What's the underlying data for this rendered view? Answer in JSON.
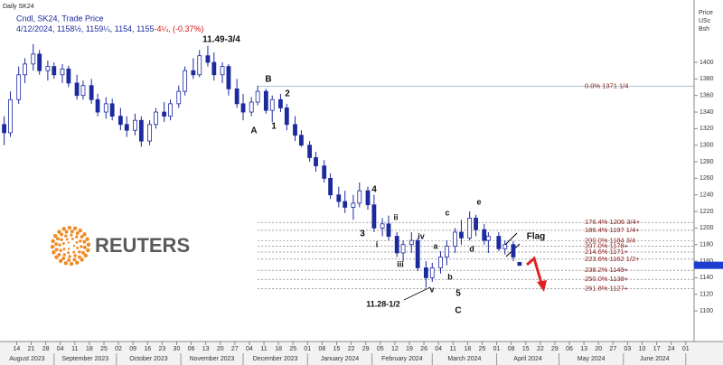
{
  "chart_data": {
    "type": "candlestick",
    "title": "Daily SK24",
    "subtitle": "Cndl, SK24, Trade Price",
    "ohlc_text": "4/12/2024, 1158½, 1159¼, 1154, 1155",
    "change_text": "-4¼, (-0.37%)",
    "y_label": [
      "Price",
      "USc",
      "Bsh"
    ],
    "watermark": "REUTERS",
    "color": "#1c2a9e",
    "x": [
      "2023-08-08",
      "2023-08-11",
      "2023-08-15",
      "2023-08-18",
      "2023-08-22",
      "2023-08-25",
      "2023-08-29",
      "2023-09-01",
      "2023-09-05",
      "2023-09-08",
      "2023-09-12",
      "2023-09-15",
      "2023-09-19",
      "2023-09-22",
      "2023-09-26",
      "2023-09-29",
      "2023-10-03",
      "2023-10-06",
      "2023-10-10",
      "2023-10-13",
      "2023-10-17",
      "2023-10-20",
      "2023-10-24",
      "2023-10-27",
      "2023-10-31",
      "2023-11-03",
      "2023-11-07",
      "2023-11-10",
      "2023-11-14",
      "2023-11-17",
      "2023-11-21",
      "2023-11-24",
      "2023-11-28",
      "2023-12-01",
      "2023-12-05",
      "2023-12-08",
      "2023-12-12",
      "2023-12-15",
      "2023-12-19",
      "2023-12-22",
      "2023-12-26",
      "2023-12-29",
      "2024-01-02",
      "2024-01-05",
      "2024-01-09",
      "2024-01-12",
      "2024-01-16",
      "2024-01-19",
      "2024-01-23",
      "2024-01-26",
      "2024-01-30",
      "2024-02-02",
      "2024-02-06",
      "2024-02-09",
      "2024-02-13",
      "2024-02-16",
      "2024-02-20",
      "2024-02-23",
      "2024-02-27",
      "2024-03-01",
      "2024-03-05",
      "2024-03-08",
      "2024-03-12",
      "2024-03-15",
      "2024-03-19",
      "2024-03-22",
      "2024-03-26",
      "2024-03-28",
      "2024-04-02",
      "2024-04-05",
      "2024-04-09",
      "2024-04-12"
    ],
    "open": [
      1325,
      1315,
      1355,
      1385,
      1398,
      1410,
      1390,
      1395,
      1385,
      1392,
      1375,
      1360,
      1372,
      1355,
      1340,
      1350,
      1335,
      1325,
      1318,
      1330,
      1305,
      1325,
      1340,
      1335,
      1350,
      1365,
      1390,
      1385,
      1408,
      1400,
      1385,
      1395,
      1368,
      1350,
      1340,
      1352,
      1365,
      1342,
      1355,
      1345,
      1325,
      1312,
      1300,
      1285,
      1275,
      1260,
      1240,
      1232,
      1225,
      1230,
      1245,
      1228,
      1200,
      1205,
      1190,
      1170,
      1180,
      1185,
      1152,
      1140,
      1152,
      1165,
      1178,
      1195,
      1188,
      1212,
      1198,
      1185,
      1190,
      1175,
      1180,
      1158.5
    ],
    "high": [
      1335,
      1365,
      1395,
      1405,
      1422,
      1415,
      1402,
      1400,
      1398,
      1396,
      1385,
      1378,
      1380,
      1362,
      1358,
      1356,
      1345,
      1335,
      1338,
      1335,
      1330,
      1345,
      1352,
      1355,
      1372,
      1395,
      1405,
      1415,
      1420,
      1412,
      1400,
      1398,
      1380,
      1362,
      1358,
      1372,
      1368,
      1360,
      1362,
      1350,
      1335,
      1318,
      1305,
      1292,
      1282,
      1266,
      1250,
      1245,
      1240,
      1255,
      1250,
      1240,
      1212,
      1215,
      1195,
      1185,
      1195,
      1188,
      1160,
      1158,
      1172,
      1185,
      1200,
      1210,
      1220,
      1216,
      1205,
      1195,
      1195,
      1185,
      1184,
      1159.25
    ],
    "low": [
      1300,
      1310,
      1350,
      1375,
      1390,
      1385,
      1378,
      1380,
      1375,
      1370,
      1355,
      1355,
      1350,
      1335,
      1332,
      1330,
      1318,
      1310,
      1312,
      1298,
      1300,
      1320,
      1328,
      1330,
      1345,
      1360,
      1380,
      1382,
      1395,
      1378,
      1375,
      1360,
      1345,
      1330,
      1335,
      1348,
      1338,
      1328,
      1340,
      1318,
      1305,
      1298,
      1280,
      1268,
      1255,
      1235,
      1225,
      1218,
      1210,
      1225,
      1222,
      1195,
      1190,
      1185,
      1165,
      1160,
      1170,
      1148,
      1128,
      1135,
      1145,
      1155,
      1170,
      1180,
      1185,
      1190,
      1180,
      1170,
      1172,
      1168,
      1160,
      1154
    ],
    "close": [
      1315,
      1355,
      1385,
      1398,
      1410,
      1390,
      1395,
      1385,
      1392,
      1375,
      1360,
      1372,
      1355,
      1340,
      1350,
      1335,
      1325,
      1318,
      1330,
      1305,
      1325,
      1340,
      1335,
      1350,
      1365,
      1390,
      1385,
      1408,
      1400,
      1385,
      1395,
      1368,
      1350,
      1340,
      1352,
      1365,
      1342,
      1355,
      1345,
      1325,
      1312,
      1300,
      1285,
      1275,
      1260,
      1240,
      1232,
      1225,
      1230,
      1245,
      1228,
      1200,
      1205,
      1190,
      1170,
      1180,
      1185,
      1152,
      1140,
      1152,
      1165,
      1178,
      1195,
      1188,
      1212,
      1198,
      1185,
      1190,
      1175,
      1180,
      1165,
      1155
    ],
    "xlim": [
      "2023-08-06",
      "2024-07-05"
    ],
    "ylim": [
      1063,
      1460
    ],
    "yticks": [
      1100,
      1120,
      1140,
      1160,
      1180,
      1200,
      1220,
      1240,
      1260,
      1280,
      1300,
      1320,
      1340,
      1360,
      1380,
      1400
    ],
    "xticks": [
      {
        "value": "2023-08-14",
        "label": "14"
      },
      {
        "value": "2023-08-21",
        "label": "21"
      },
      {
        "value": "2023-08-28",
        "label": "28"
      },
      {
        "value": "2023-09-04",
        "label": "04"
      },
      {
        "value": "2023-09-11",
        "label": "11"
      },
      {
        "value": "2023-09-18",
        "label": "18"
      },
      {
        "value": "2023-09-25",
        "label": "25"
      },
      {
        "value": "2023-10-02",
        "label": "02"
      },
      {
        "value": "2023-10-09",
        "label": "09"
      },
      {
        "value": "2023-10-16",
        "label": "16"
      },
      {
        "value": "2023-10-23",
        "label": "23"
      },
      {
        "value": "2023-10-30",
        "label": "30"
      },
      {
        "value": "2023-11-06",
        "label": "06"
      },
      {
        "value": "2023-11-13",
        "label": "13"
      },
      {
        "value": "2023-11-20",
        "label": "20"
      },
      {
        "value": "2023-11-27",
        "label": "27"
      },
      {
        "value": "2023-12-04",
        "label": "04"
      },
      {
        "value": "2023-12-11",
        "label": "11"
      },
      {
        "value": "2023-12-18",
        "label": "18"
      },
      {
        "value": "2023-12-25",
        "label": "25"
      },
      {
        "value": "2024-01-01",
        "label": "01"
      },
      {
        "value": "2024-01-08",
        "label": "08"
      },
      {
        "value": "2024-01-15",
        "label": "15"
      },
      {
        "value": "2024-01-22",
        "label": "22"
      },
      {
        "value": "2024-01-29",
        "label": "29"
      },
      {
        "value": "2024-02-05",
        "label": "05"
      },
      {
        "value": "2024-02-12",
        "label": "12"
      },
      {
        "value": "2024-02-19",
        "label": "19"
      },
      {
        "value": "2024-02-26",
        "label": "26"
      },
      {
        "value": "2024-03-04",
        "label": "04"
      },
      {
        "value": "2024-03-11",
        "label": "11"
      },
      {
        "value": "2024-03-18",
        "label": "18"
      },
      {
        "value": "2024-03-25",
        "label": "25"
      },
      {
        "value": "2024-04-01",
        "label": "01"
      },
      {
        "value": "2024-04-08",
        "label": "08"
      },
      {
        "value": "2024-04-15",
        "label": "15"
      },
      {
        "value": "2024-04-22",
        "label": "22"
      },
      {
        "value": "2024-04-29",
        "label": "29"
      },
      {
        "value": "2024-05-06",
        "label": "06"
      },
      {
        "value": "2024-05-13",
        "label": "13"
      },
      {
        "value": "2024-05-20",
        "label": "20"
      },
      {
        "value": "2024-05-27",
        "label": "27"
      },
      {
        "value": "2024-06-03",
        "label": "03"
      },
      {
        "value": "2024-06-10",
        "label": "10"
      },
      {
        "value": "2024-06-17",
        "label": "17"
      },
      {
        "value": "2024-06-24",
        "label": "24"
      },
      {
        "value": "2024-07-01",
        "label": "01"
      }
    ],
    "months": [
      {
        "value": "2023-08",
        "label": "August 2023"
      },
      {
        "value": "2023-09",
        "label": "September 2023"
      },
      {
        "value": "2023-10",
        "label": "October 2023"
      },
      {
        "value": "2023-11",
        "label": "November 2023"
      },
      {
        "value": "2023-12",
        "label": "December 2023"
      },
      {
        "value": "2024-01",
        "label": "January 2024"
      },
      {
        "value": "2024-02",
        "label": "February 2024"
      },
      {
        "value": "2024-03",
        "label": "March 2024"
      },
      {
        "value": "2024-04",
        "label": "April 2024"
      },
      {
        "value": "2024-05",
        "label": "May 2024"
      },
      {
        "value": "2024-06",
        "label": "June 2024"
      }
    ],
    "levels": [
      {
        "value": 1371.25,
        "label": "0.0%    1371 1/4"
      },
      {
        "value": 1206.75,
        "label": "176.4% 1206 3/4+"
      },
      {
        "value": 1197.25,
        "label": "186.4% 1197 1/4+"
      },
      {
        "value": 1184.75,
        "label": "200.0% 1184 3/4"
      },
      {
        "value": 1178,
        "label": "207.0% 1178+"
      },
      {
        "value": 1171,
        "label": "214.6% 1171+"
      },
      {
        "value": 1162.5,
        "label": "223.6% 1162 1/2+"
      },
      {
        "value": 1149,
        "label": "238.2% 1149+"
      },
      {
        "value": 1138,
        "label": "250.0% 1138+"
      },
      {
        "value": 1127,
        "label": "261.8% 1127+"
      }
    ],
    "annotations": [
      "11.49-3/4",
      "B",
      "2",
      "A",
      "1",
      "4",
      "3",
      "ii",
      "i",
      "iv",
      "iii",
      "a",
      "c",
      "e",
      "d",
      "b",
      "v",
      "5",
      "11.28-1/2",
      "C",
      "Flag"
    ]
  }
}
